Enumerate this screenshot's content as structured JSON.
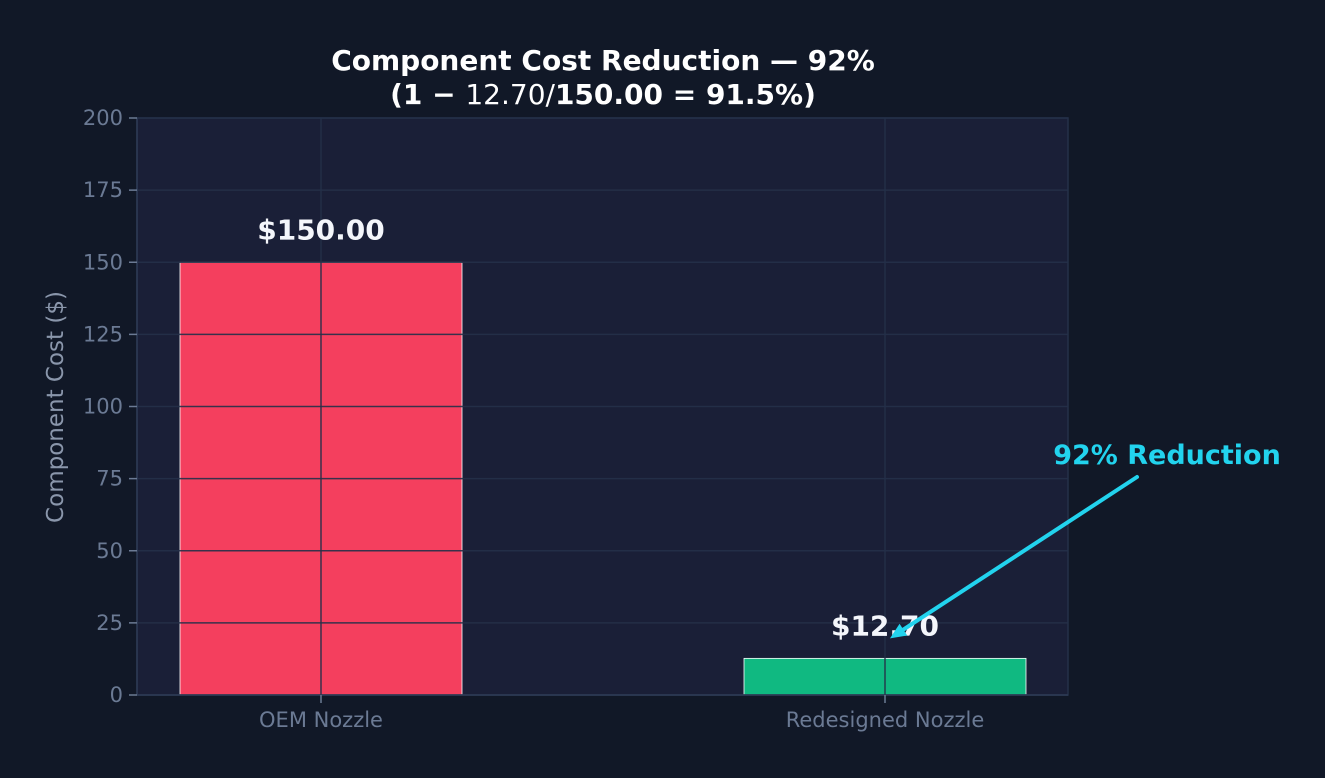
{
  "colors": {
    "background": "#111827",
    "plot_background": "#1a1f37",
    "grid": "#243049",
    "bar_oem": "#f43f5e",
    "bar_redesigned": "#10b981",
    "annotation": "#22d3ee",
    "bar_edge": "#ffffff"
  },
  "chart_data": {
    "type": "bar",
    "title": "Component Cost Reduction — 92%",
    "subtitle": {
      "open": "(1 − ",
      "ratio": "12.70/",
      "rest": "150.00 = 91.5%)"
    },
    "xlabel": "",
    "ylabel": "Component Cost ($)",
    "categories": [
      "OEM Nozzle",
      "Redesigned Nozzle"
    ],
    "values": [
      150.0,
      12.7
    ],
    "value_labels": [
      "$150.00",
      "$12.70"
    ],
    "ylim": [
      0,
      200
    ],
    "yticks": [
      0,
      25,
      50,
      75,
      100,
      125,
      150,
      175,
      200
    ],
    "grid": true,
    "annotation": {
      "text": "92% Reduction",
      "target_category": "Redesigned Nozzle"
    }
  }
}
